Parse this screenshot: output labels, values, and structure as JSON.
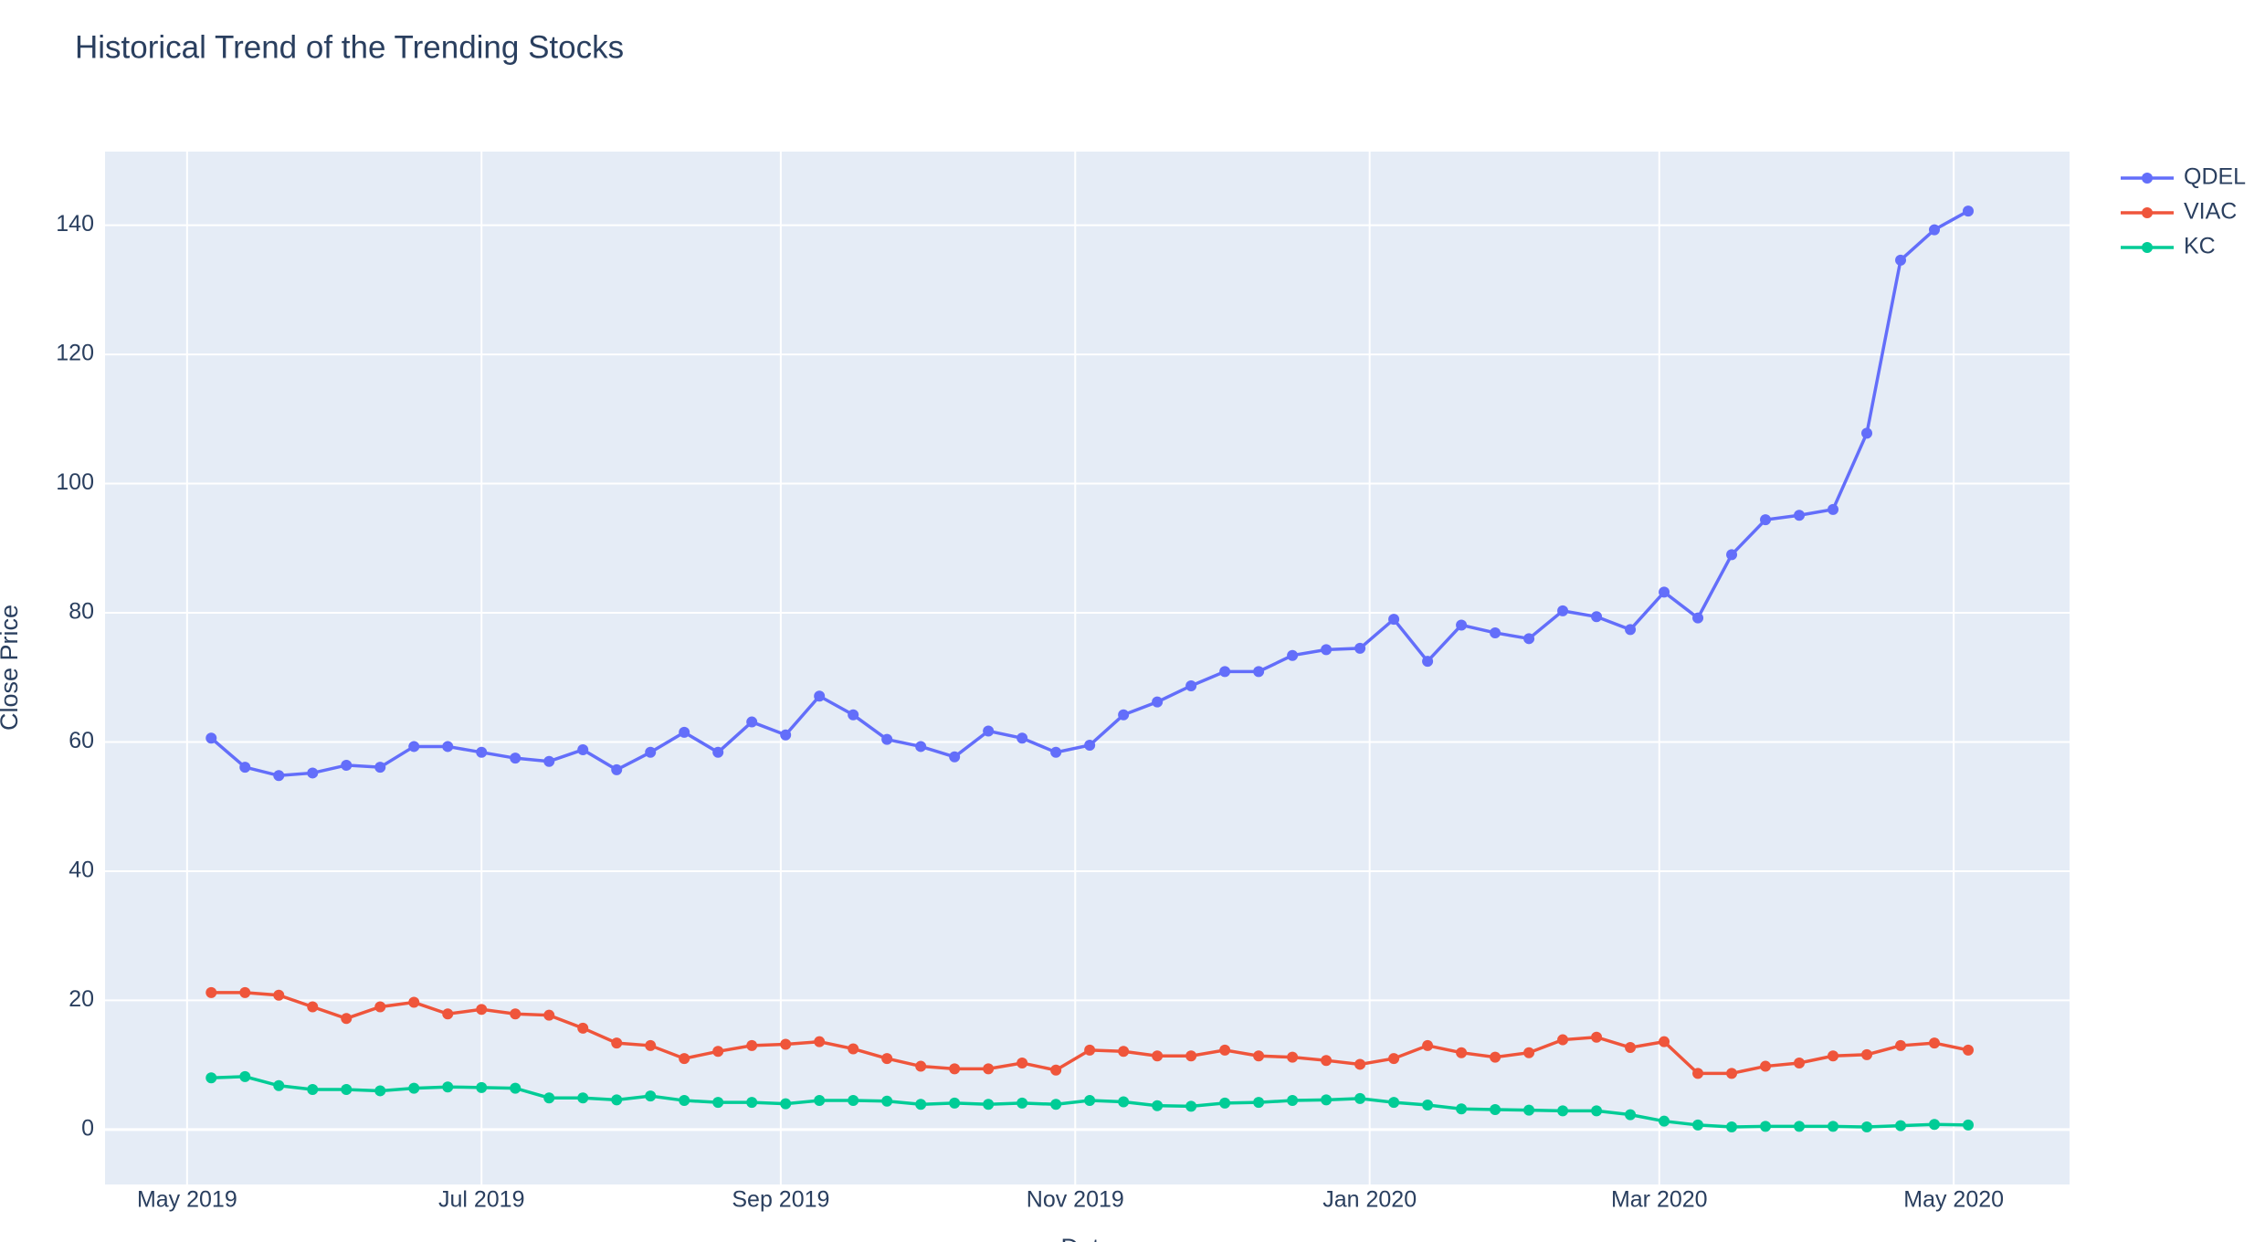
{
  "chart_data": {
    "type": "line",
    "title": "Historical Trend of the Trending Stocks",
    "x_label": "Date",
    "y_label": "Close Price",
    "x": [
      "2019-05-06",
      "2019-05-13",
      "2019-05-20",
      "2019-05-27",
      "2019-06-03",
      "2019-06-10",
      "2019-06-17",
      "2019-06-24",
      "2019-07-01",
      "2019-07-08",
      "2019-07-15",
      "2019-07-22",
      "2019-07-29",
      "2019-08-05",
      "2019-08-12",
      "2019-08-19",
      "2019-08-26",
      "2019-09-02",
      "2019-09-09",
      "2019-09-16",
      "2019-09-23",
      "2019-09-30",
      "2019-10-07",
      "2019-10-14",
      "2019-10-21",
      "2019-10-28",
      "2019-11-04",
      "2019-11-11",
      "2019-11-18",
      "2019-11-25",
      "2019-12-02",
      "2019-12-09",
      "2019-12-16",
      "2019-12-23",
      "2019-12-30",
      "2020-01-06",
      "2020-01-13",
      "2020-01-20",
      "2020-01-27",
      "2020-02-03",
      "2020-02-10",
      "2020-02-17",
      "2020-02-24",
      "2020-03-02",
      "2020-03-09",
      "2020-03-16",
      "2020-03-23",
      "2020-03-30",
      "2020-04-06",
      "2020-04-13",
      "2020-04-20",
      "2020-04-27",
      "2020-05-04"
    ],
    "series": [
      {
        "name": "QDEL",
        "color": "#636efa",
        "values": [
          60.6,
          56.1,
          54.8,
          55.2,
          56.4,
          56.1,
          59.3,
          59.3,
          58.4,
          57.5,
          57.0,
          58.8,
          55.7,
          58.4,
          61.5,
          58.4,
          63.1,
          61.1,
          67.1,
          64.2,
          60.4,
          59.3,
          57.7,
          61.7,
          60.6,
          58.4,
          59.5,
          64.2,
          66.2,
          68.7,
          70.9,
          70.9,
          73.4,
          74.3,
          74.5,
          79.0,
          72.5,
          78.1,
          76.9,
          76.0,
          80.3,
          79.4,
          77.4,
          83.2,
          79.2,
          89.0,
          94.4,
          95.1,
          96.0,
          107.8,
          134.6,
          139.3,
          142.2
        ]
      },
      {
        "name": "VIAC",
        "color": "#EF553B",
        "values": [
          21.2,
          21.2,
          20.8,
          19.0,
          17.2,
          19.0,
          19.7,
          17.9,
          18.6,
          17.9,
          17.7,
          15.7,
          13.4,
          13.0,
          11.0,
          12.1,
          13.0,
          13.2,
          13.6,
          12.5,
          11.0,
          9.8,
          9.4,
          9.4,
          10.3,
          9.2,
          12.3,
          12.1,
          11.4,
          11.4,
          12.3,
          11.4,
          11.2,
          10.7,
          10.1,
          11.0,
          13.0,
          11.9,
          11.2,
          11.9,
          13.9,
          14.3,
          12.7,
          13.6,
          8.7,
          8.7,
          9.8,
          10.3,
          11.4,
          11.6,
          13.0,
          13.4,
          12.3
        ]
      },
      {
        "name": "KC",
        "color": "#00cc96",
        "values": [
          8.0,
          8.2,
          6.8,
          6.2,
          6.2,
          6.0,
          6.4,
          6.6,
          6.5,
          6.4,
          4.9,
          4.9,
          4.6,
          5.2,
          4.5,
          4.2,
          4.2,
          4.0,
          4.5,
          4.5,
          4.4,
          3.9,
          4.1,
          3.9,
          4.1,
          3.9,
          4.5,
          4.3,
          3.7,
          3.6,
          4.1,
          4.2,
          4.5,
          4.6,
          4.8,
          4.2,
          3.8,
          3.2,
          3.1,
          3.0,
          2.9,
          2.9,
          2.3,
          1.3,
          0.7,
          0.4,
          0.5,
          0.5,
          0.5,
          0.4,
          0.6,
          0.8,
          0.7
        ]
      }
    ],
    "xlim": [
      "2019-04-14",
      "2020-05-25"
    ],
    "xticks": [
      {
        "value": "2019-05-01",
        "label": "May 2019"
      },
      {
        "value": "2019-07-01",
        "label": "Jul 2019"
      },
      {
        "value": "2019-09-01",
        "label": "Sep 2019"
      },
      {
        "value": "2019-11-01",
        "label": "Nov 2019"
      },
      {
        "value": "2020-01-01",
        "label": "Jan 2020"
      },
      {
        "value": "2020-03-01",
        "label": "Mar 2020"
      },
      {
        "value": "2020-05-01",
        "label": "May 2020"
      }
    ],
    "ylim": [
      -8.5,
      151.4
    ],
    "yticks": [
      0,
      20,
      40,
      60,
      80,
      100,
      120,
      140
    ],
    "grid": true,
    "legend": "right"
  }
}
